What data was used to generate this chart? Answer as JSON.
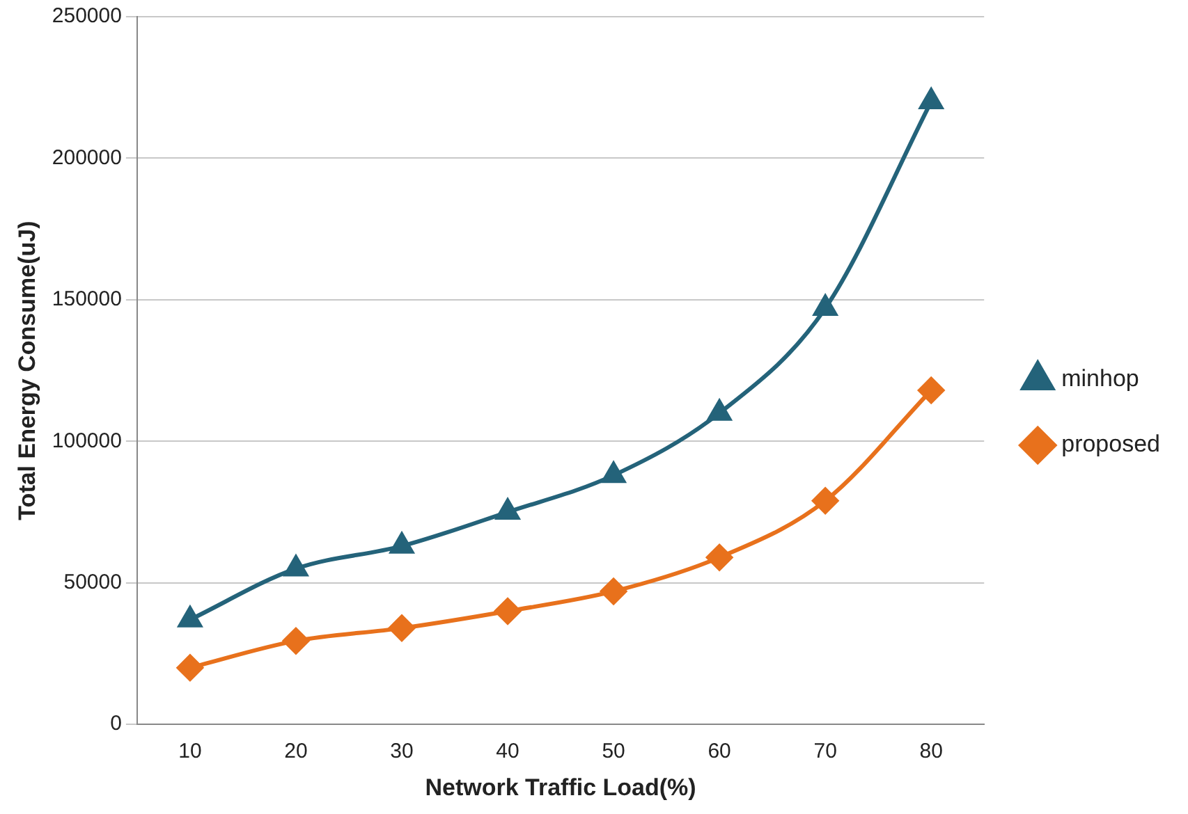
{
  "chart_data": {
    "type": "line",
    "xlabel": "Network Traffic Load(%)",
    "ylabel": "Total Energy Consume(uJ)",
    "categories": [
      "10",
      "20",
      "30",
      "40",
      "50",
      "60",
      "70",
      "80"
    ],
    "series": [
      {
        "name": "minhop",
        "color": "#24637a",
        "marker": "triangle",
        "values": [
          37000,
          55000,
          63000,
          75000,
          88000,
          110000,
          147000,
          220000
        ]
      },
      {
        "name": "proposed",
        "color": "#e8711c",
        "marker": "diamond",
        "values": [
          20000,
          29500,
          34000,
          40000,
          47000,
          59000,
          79000,
          118000
        ]
      }
    ],
    "ylim": [
      0,
      250000
    ],
    "yticks": [
      0,
      50000,
      100000,
      150000,
      200000,
      250000
    ],
    "grid": "y",
    "legend": "right"
  }
}
